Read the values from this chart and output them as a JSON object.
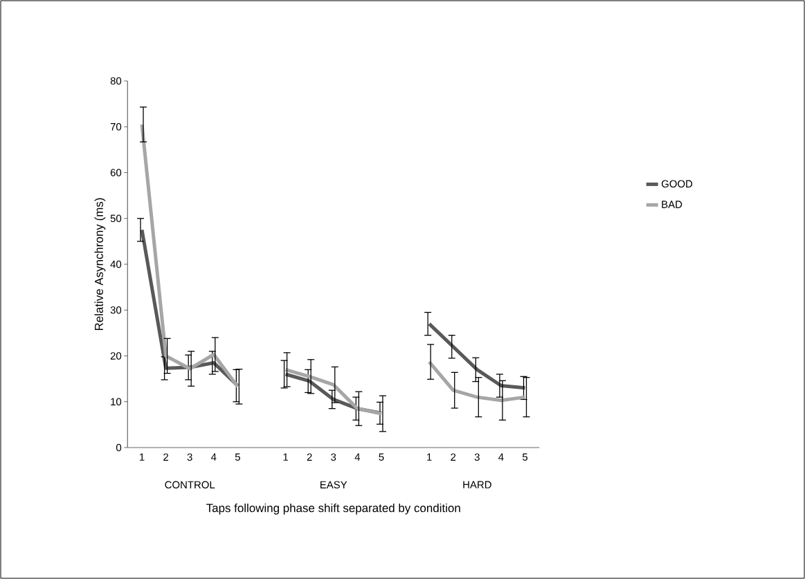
{
  "chart_data": {
    "type": "line",
    "xlabel": "Taps following phase shift separated by condition",
    "ylabel": "Relative Asynchrony (ms)",
    "categories": [
      "1",
      "2",
      "3",
      "4",
      "5",
      null,
      "1",
      "2",
      "3",
      "4",
      "5",
      null,
      "1",
      "2",
      "3",
      "4",
      "5"
    ],
    "annotations": [
      "CONTROL",
      "EASY",
      "HARD"
    ],
    "series": [
      {
        "name": "GOOD",
        "color": "#595959",
        "values": [
          47.5,
          17.3,
          17.5,
          18.5,
          13.5,
          null,
          16,
          14.5,
          10.5,
          8.5,
          7.5,
          null,
          27,
          22,
          17,
          13.5,
          13
        ],
        "errors": [
          2.5,
          2.5,
          2.7,
          2.5,
          3.5,
          null,
          3,
          2.5,
          2,
          2.5,
          2.4,
          null,
          2.5,
          2.5,
          2.6,
          2.5,
          2.5
        ]
      },
      {
        "name": "BAD",
        "color": "#a6a6a6",
        "values": [
          70.5,
          20,
          17.2,
          20.3,
          13.3,
          null,
          17,
          15.5,
          13.7,
          8.5,
          7.4,
          null,
          18.7,
          12.5,
          11,
          10.3,
          11
        ],
        "errors": [
          3.8,
          3.8,
          3.8,
          3.7,
          3.8,
          null,
          3.7,
          3.7,
          3.9,
          3.7,
          3.9,
          null,
          3.8,
          3.9,
          4.3,
          4.3,
          4.3
        ]
      }
    ],
    "ylim": [
      0,
      80
    ],
    "yticks": [
      0,
      10,
      20,
      30,
      40,
      50,
      60,
      70,
      80
    ],
    "legend": "right",
    "grid": false,
    "marker": "none",
    "line_style": "solid"
  }
}
